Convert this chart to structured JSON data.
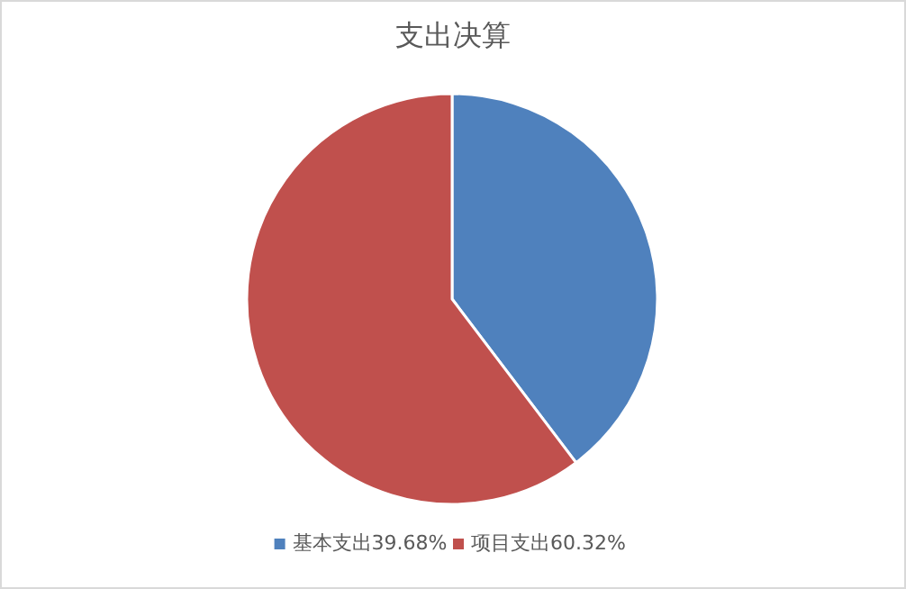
{
  "chart_data": {
    "type": "pie",
    "title": "支出决算",
    "categories": [
      "基本支出39.68%",
      "项目支出60.32%"
    ],
    "values": [
      39.68,
      60.32
    ],
    "colors": [
      "#4f81bd",
      "#c0504d"
    ],
    "legend": "bottom"
  }
}
